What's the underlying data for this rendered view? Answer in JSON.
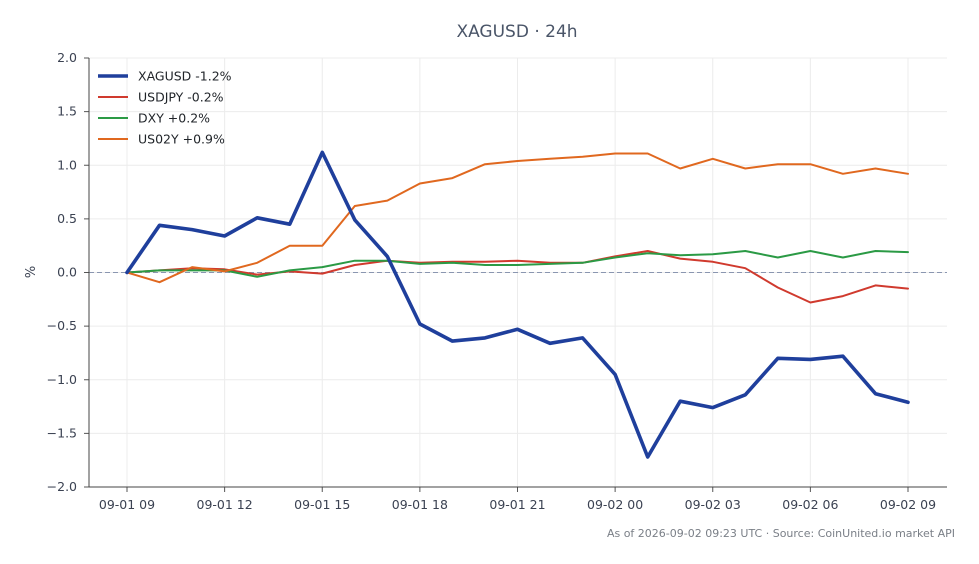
{
  "chart_data": {
    "type": "line",
    "title": "XAGUSD · 24h",
    "ylabel": "%",
    "ylim": [
      -2.0,
      2.0
    ],
    "yticks": [
      "2.0",
      "1.5",
      "1.0",
      "0.5",
      "0.0",
      "−0.5",
      "−1.0",
      "−1.5",
      "−2.0"
    ],
    "ytick_values": [
      2.0,
      1.5,
      1.0,
      0.5,
      0.0,
      -0.5,
      -1.0,
      -1.5,
      -2.0
    ],
    "xlim": [
      0,
      24
    ],
    "xticks": [
      {
        "pos": 0,
        "label": "09-01 09"
      },
      {
        "pos": 3,
        "label": "09-01 12"
      },
      {
        "pos": 6,
        "label": "09-01 15"
      },
      {
        "pos": 9,
        "label": "09-01 18"
      },
      {
        "pos": 12,
        "label": "09-01 21"
      },
      {
        "pos": 15,
        "label": "09-02 00"
      },
      {
        "pos": 18,
        "label": "09-02 03"
      },
      {
        "pos": 21,
        "label": "09-02 06"
      },
      {
        "pos": 24,
        "label": "09-02 09"
      }
    ],
    "grid": true,
    "zero_line": true,
    "legend_position": "top-left",
    "x": [
      0,
      1,
      2,
      3,
      4,
      5,
      6,
      7,
      8,
      9,
      10,
      11,
      12,
      13,
      14,
      15,
      16,
      17,
      18,
      19,
      20,
      21,
      22,
      23,
      24
    ],
    "series": [
      {
        "name": "XAGUSD -1.2%",
        "color": "#1f3f9c",
        "emphasis": true,
        "values": [
          0.0,
          0.44,
          0.4,
          0.34,
          0.51,
          0.45,
          1.12,
          0.49,
          0.15,
          -0.48,
          -0.64,
          -0.61,
          -0.53,
          -0.66,
          -0.61,
          -0.95,
          -1.72,
          -1.2,
          -1.26,
          -1.14,
          -0.8,
          -0.81,
          -0.78,
          -1.13,
          -1.21
        ]
      },
      {
        "name": "USDJPY -0.2%",
        "color": "#d03a2e",
        "values": [
          0.0,
          0.02,
          0.04,
          0.03,
          -0.02,
          0.01,
          -0.01,
          0.07,
          0.11,
          0.09,
          0.1,
          0.1,
          0.11,
          0.09,
          0.09,
          0.15,
          0.2,
          0.13,
          0.1,
          0.04,
          -0.14,
          -0.28,
          -0.22,
          -0.12,
          -0.15
        ]
      },
      {
        "name": "DXY +0.2%",
        "color": "#2b9a45",
        "values": [
          0.0,
          0.02,
          0.02,
          0.02,
          -0.04,
          0.02,
          0.05,
          0.11,
          0.11,
          0.08,
          0.09,
          0.07,
          0.07,
          0.08,
          0.09,
          0.14,
          0.18,
          0.16,
          0.17,
          0.2,
          0.14,
          0.2,
          0.14,
          0.2,
          0.19
        ]
      },
      {
        "name": "US02Y +0.9%",
        "color": "#e0681f",
        "values": [
          0.0,
          -0.09,
          0.05,
          0.01,
          0.09,
          0.25,
          0.25,
          0.62,
          0.67,
          0.83,
          0.88,
          1.01,
          1.04,
          1.06,
          1.08,
          1.11,
          1.11,
          0.97,
          1.06,
          0.97,
          1.01,
          1.01,
          0.92,
          0.97,
          0.92
        ]
      }
    ]
  },
  "footer": "As of 2026-09-02 09:23 UTC · Source: CoinUnited.io market API"
}
